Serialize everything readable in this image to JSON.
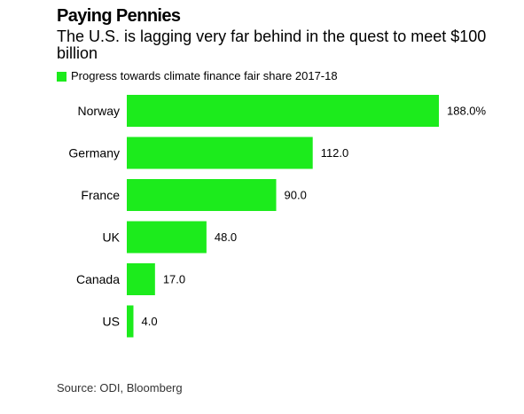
{
  "header": {
    "title": "Paying Pennies",
    "subtitle": "The U.S. is lagging very far behind in the quest to meet $100 billion"
  },
  "source": "Source: ODI, Bloomberg",
  "colors": {
    "bar": "#1ceb1c"
  },
  "chart_data": {
    "type": "bar",
    "orientation": "horizontal",
    "categories": [
      "Norway",
      "Germany",
      "France",
      "UK",
      "Canada",
      "US"
    ],
    "series": [
      {
        "name": "Progress towards climate finance fair share 2017-18",
        "values": [
          188.0,
          112.0,
          90.0,
          48.0,
          17.0,
          4.0
        ],
        "labels": [
          "188.0%",
          "112.0",
          "90.0",
          "48.0",
          "17.0",
          "4.0"
        ]
      }
    ],
    "title": "Paying Pennies",
    "subtitle": "The U.S. is lagging very far behind in the quest to meet $100 billion",
    "xlabel": "",
    "ylabel": "",
    "legend": "top-left",
    "grid": false
  }
}
